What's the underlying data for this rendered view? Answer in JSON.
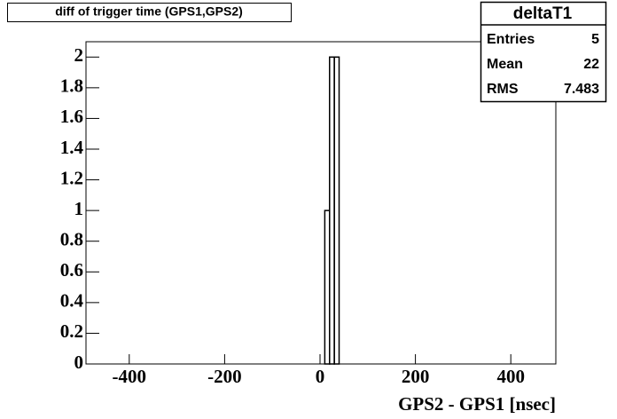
{
  "chart_data": {
    "type": "histogram",
    "title": "diff of trigger time (GPS1,GPS2)",
    "x_label": "GPS2 - GPS1 [nsec]",
    "bins": [
      10,
      20,
      30,
      40
    ],
    "counts": [
      1,
      2,
      2
    ],
    "color": "#000000",
    "xlim": [
      -500,
      500
    ],
    "xticks": [
      -400,
      -200,
      0,
      200,
      400
    ],
    "ylim": [
      0,
      2.1
    ],
    "yticks": [
      0,
      0.2,
      0.4,
      0.6,
      0.8,
      1,
      1.2,
      1.4,
      1.6,
      1.8,
      2
    ],
    "stats": {
      "title": "deltaT1",
      "rows": [
        [
          "Entries",
          5
        ],
        [
          "Mean",
          22
        ],
        [
          "RMS",
          7.483
        ]
      ]
    }
  }
}
